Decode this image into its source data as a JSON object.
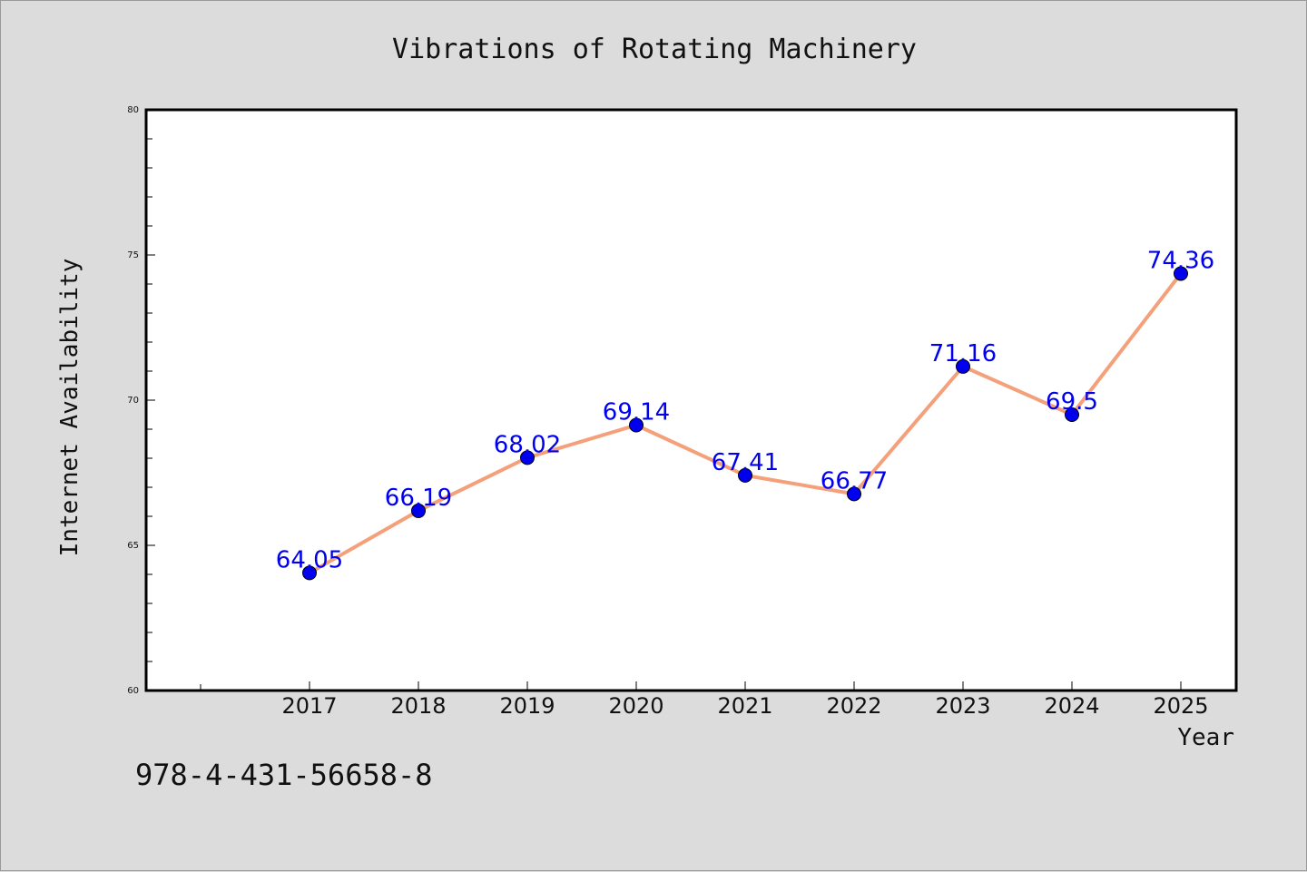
{
  "chart_data": {
    "type": "line",
    "title": "Vibrations of Rotating Machinery",
    "xlabel": "Year",
    "ylabel": "Internet Availability",
    "categories": [
      "2017",
      "2018",
      "2019",
      "2020",
      "2021",
      "2022",
      "2023",
      "2024",
      "2025"
    ],
    "series": [
      {
        "values": [
          64.05,
          66.19,
          68.02,
          69.14,
          67.41,
          66.77,
          71.16,
          69.5,
          74.36
        ],
        "data_labels": [
          "64.05",
          "66.19",
          "68.02",
          "69.14",
          "67.41",
          "66.77",
          "71.16",
          "69.5",
          "74.36"
        ]
      }
    ],
    "ylim": [
      60,
      80
    ],
    "yticks": [
      "60",
      "65",
      "70",
      "75",
      "80"
    ],
    "grid": false,
    "legend": "none",
    "colors": {
      "line": "#f4a07a",
      "marker": "#0000ee",
      "data_label": "#0000ee",
      "plot_bg": "#ffffff",
      "page_bg": "#dcdcdc"
    }
  },
  "footer": {
    "code": "978-4-431-56658-8"
  }
}
